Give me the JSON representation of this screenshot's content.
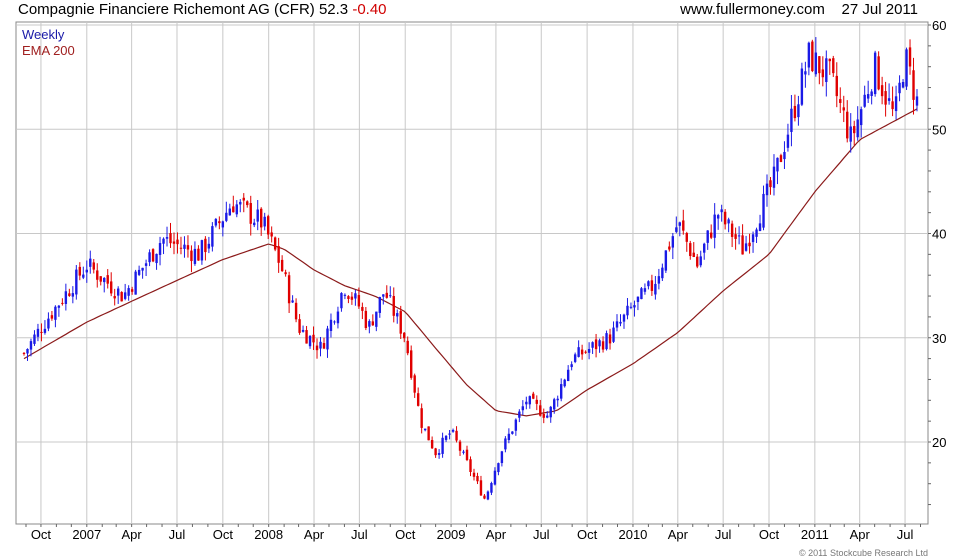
{
  "header": {
    "company": "Compagnie Financiere Richemont AG (CFR)",
    "last_price": "52.3",
    "change": "-0.40",
    "site": "www.fullermoney.com",
    "date": "27 Jul 2011"
  },
  "credit": "© 2011 Stockcube Research Ltd",
  "chart_data": {
    "type": "candlestick",
    "period": "Weekly",
    "indicator": "EMA 200",
    "x_ticks": [
      "Oct",
      "2007",
      "Apr",
      "Jul",
      "Oct",
      "2008",
      "Apr",
      "Jul",
      "Oct",
      "2009",
      "Apr",
      "Jul",
      "Oct",
      "2010",
      "Apr",
      "Jul",
      "Oct",
      "2011",
      "Apr",
      "Jul"
    ],
    "y_ticks": [
      20,
      30,
      40,
      50,
      60
    ],
    "ylim": [
      12,
      60
    ],
    "grid": true,
    "colors": {
      "up": "#1a1ae6",
      "down": "#e00000",
      "ema": "#8b1a1a",
      "grid": "#c8c8c8"
    },
    "key_points": [
      [
        "2006-08-28",
        28.5
      ],
      [
        "2006-10-01",
        31
      ],
      [
        "2007-01-01",
        37
      ],
      [
        "2007-03-15",
        34
      ],
      [
        "2007-06-01",
        39.5
      ],
      [
        "2007-08-15",
        38
      ],
      [
        "2007-10-20",
        43
      ],
      [
        "2007-12-20",
        41
      ],
      [
        "2008-01-25",
        37
      ],
      [
        "2008-03-01",
        31
      ],
      [
        "2008-04-15",
        29
      ],
      [
        "2008-06-01",
        35
      ],
      [
        "2008-07-01",
        33
      ],
      [
        "2008-07-20",
        31
      ],
      [
        "2008-08-20",
        34.5
      ],
      [
        "2008-10-01",
        30
      ],
      [
        "2008-11-01",
        22
      ],
      [
        "2008-12-01",
        19
      ],
      [
        "2009-01-01",
        21
      ],
      [
        "2009-03-10",
        14.5
      ],
      [
        "2009-04-10",
        19
      ],
      [
        "2009-06-01",
        24
      ],
      [
        "2009-07-15",
        22.5
      ],
      [
        "2009-09-01",
        28
      ],
      [
        "2009-11-15",
        30
      ],
      [
        "2010-01-01",
        33
      ],
      [
        "2010-02-10",
        35
      ],
      [
        "2010-04-01",
        41
      ],
      [
        "2010-05-10",
        37
      ],
      [
        "2010-06-20",
        42
      ],
      [
        "2010-08-10",
        38.5
      ],
      [
        "2010-10-10",
        45
      ],
      [
        "2010-12-20",
        57
      ],
      [
        "2011-02-01",
        55
      ],
      [
        "2011-03-15",
        49
      ],
      [
        "2011-05-01",
        56
      ],
      [
        "2011-06-10",
        51
      ],
      [
        "2011-07-01",
        57
      ],
      [
        "2011-07-27",
        52.3
      ]
    ],
    "ema_points": [
      [
        "2006-08-28",
        28.0
      ],
      [
        "2007-01-01",
        31.5
      ],
      [
        "2007-04-01",
        33.5
      ],
      [
        "2007-07-01",
        35.5
      ],
      [
        "2007-10-01",
        37.5
      ],
      [
        "2008-01-01",
        39.0
      ],
      [
        "2008-02-01",
        38.5
      ],
      [
        "2008-04-01",
        36.5
      ],
      [
        "2008-06-01",
        35.0
      ],
      [
        "2008-08-01",
        34.0
      ],
      [
        "2008-10-01",
        32.5
      ],
      [
        "2008-12-01",
        29.0
      ],
      [
        "2009-02-01",
        25.5
      ],
      [
        "2009-04-01",
        23.0
      ],
      [
        "2009-06-01",
        22.5
      ],
      [
        "2009-08-01",
        23.0
      ],
      [
        "2009-10-01",
        25.0
      ],
      [
        "2010-01-01",
        27.5
      ],
      [
        "2010-04-01",
        30.5
      ],
      [
        "2010-07-01",
        34.5
      ],
      [
        "2010-10-01",
        38.0
      ],
      [
        "2011-01-01",
        44.0
      ],
      [
        "2011-04-01",
        49.0
      ],
      [
        "2011-07-27",
        52.0
      ]
    ]
  }
}
